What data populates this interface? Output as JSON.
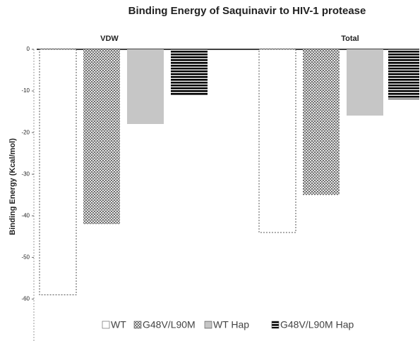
{
  "chart_data": {
    "type": "bar",
    "title": "Binding Energy of Saquinavir to HIV-1 protease",
    "y_label": "Binding Energy (Kcal/mol)",
    "categories": [
      "VDW",
      "Total"
    ],
    "series": [
      {
        "name": "WT",
        "color": "#ffffff",
        "values": [
          -59,
          -44
        ]
      },
      {
        "name": "G48V/L90M",
        "color": "#777777",
        "values": [
          -42,
          -35
        ]
      },
      {
        "name": "WT Hap",
        "color": "#999999",
        "values": [
          -18,
          -16
        ]
      },
      {
        "name": "G48V/L90M Hap",
        "color": "#000000",
        "values": [
          -11,
          -12
        ]
      }
    ],
    "ylim": [
      -65,
      0
    ],
    "yticks": [
      0,
      -10,
      -20,
      -30,
      -40,
      -50,
      -60
    ],
    "legend": "bottom"
  }
}
